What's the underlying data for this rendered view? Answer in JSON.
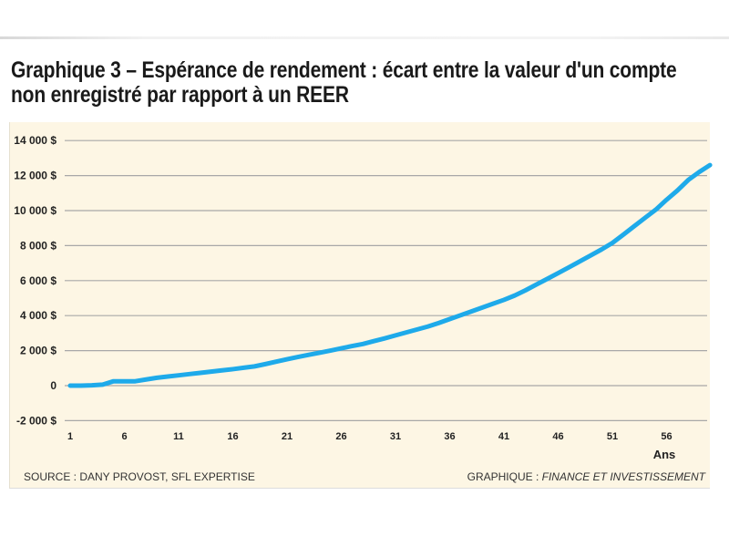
{
  "title": "Graphique 3 – Espérance de rendement : écart entre la valeur d'un compte non enregistré par rapport à un REER",
  "source": "SOURCE : DANY PROVOST, SFL EXPERTISE",
  "credit_prefix": "GRAPHIQUE : ",
  "credit_name": "FINANCE ET INVESTISSEMENT",
  "chart_data": {
    "type": "line",
    "title": "Graphique 3 – Espérance de rendement : écart entre la valeur d'un compte non enregistré par rapport à un REER",
    "xlabel": "Ans",
    "ylabel": "",
    "xlim": [
      1,
      60
    ],
    "ylim": [
      -2000,
      14000
    ],
    "grid": true,
    "x_ticks": [
      1,
      6,
      11,
      16,
      21,
      26,
      31,
      36,
      41,
      46,
      51,
      56
    ],
    "x_tick_labels": [
      "1",
      "6",
      "11",
      "16",
      "21",
      "26",
      "31",
      "36",
      "41",
      "46",
      "51",
      "56"
    ],
    "y_ticks": [
      14000,
      12000,
      10000,
      8000,
      6000,
      4000,
      2000,
      0,
      -2000
    ],
    "y_tick_labels": [
      "14 000 $",
      "12 000 $",
      "10 000 $",
      "8 000 $",
      "6 000 $",
      "4 000 $",
      "2 000 $",
      "0",
      "-2 000 $"
    ],
    "line_color": "#1eaaea",
    "background": "#fdf6e4",
    "series": [
      {
        "x": [
          1,
          2,
          3,
          4,
          5,
          6,
          7,
          8,
          9,
          10,
          11,
          12,
          13,
          14,
          15,
          16,
          17,
          18,
          19,
          20,
          21,
          22,
          23,
          24,
          25,
          26,
          27,
          28,
          29,
          30,
          31,
          32,
          33,
          34,
          35,
          36,
          37,
          38,
          39,
          40,
          41,
          42,
          43,
          44,
          45,
          46,
          47,
          48,
          49,
          50,
          51,
          52,
          53,
          54,
          55,
          56,
          57,
          58,
          59,
          60
        ],
        "values": [
          0,
          0,
          20,
          60,
          250,
          250,
          250,
          350,
          450,
          520,
          590,
          660,
          730,
          800,
          870,
          940,
          1020,
          1100,
          1230,
          1370,
          1510,
          1640,
          1760,
          1880,
          2000,
          2130,
          2260,
          2380,
          2540,
          2700,
          2870,
          3040,
          3210,
          3380,
          3580,
          3800,
          4020,
          4240,
          4460,
          4680,
          4900,
          5150,
          5450,
          5780,
          6100,
          6430,
          6760,
          7100,
          7440,
          7780,
          8150,
          8620,
          9100,
          9580,
          10050,
          10620,
          11150,
          11750,
          12200,
          12600
        ]
      }
    ]
  }
}
